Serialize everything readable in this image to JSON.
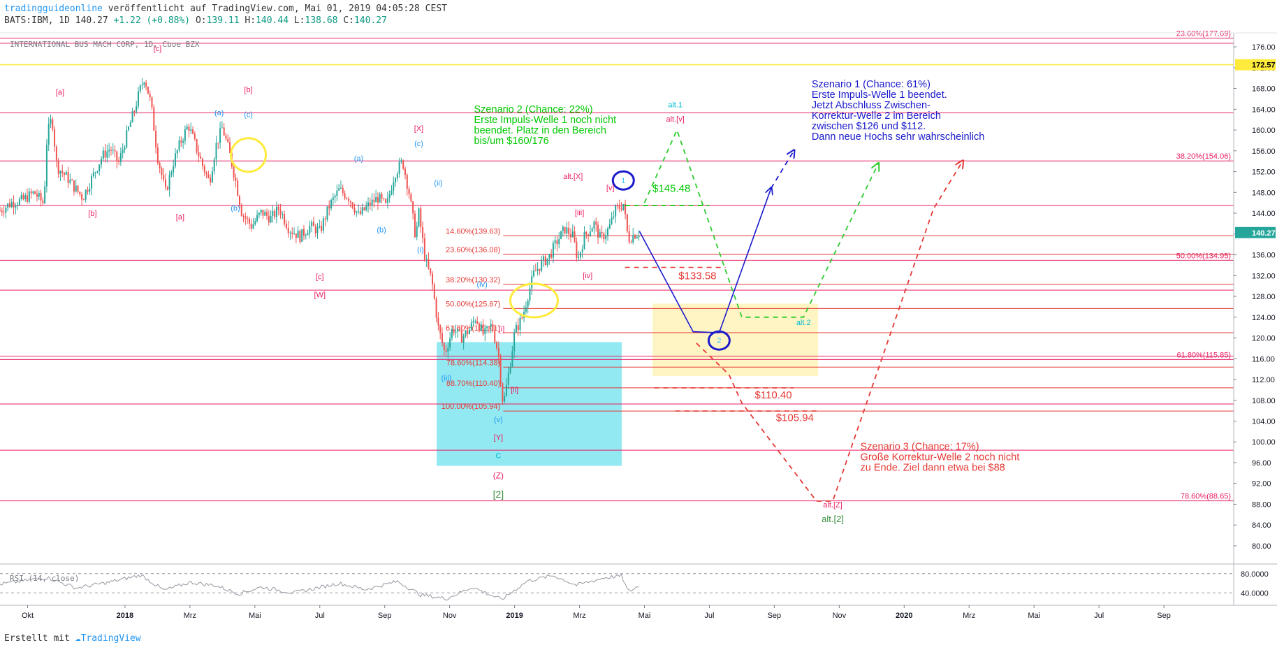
{
  "header": {
    "publisher": "tradingguideonline",
    "published_text": "veröffentlicht auf TradingView.com, Mai 01, 2019 04:05:28 CEST",
    "symbol_line": "BATS:IBM, 1D 140.27",
    "change": "+1.22 (+0.88%)",
    "o_label": "O:",
    "o": "139.11",
    "h_label": "H:",
    "h": "140.44",
    "l_label": "L:",
    "l": "138.68",
    "c_label": "C:",
    "c": "140.27"
  },
  "footer": {
    "created_with": "Erstellt mit",
    "tradingview": "TradingView"
  },
  "chart_data": {
    "type": "candlestick",
    "instrument_label": "INTERNATIONAL BUS MACH CORP, 1D, Cboe BZX",
    "price_axis": {
      "ticks": [
        176,
        172,
        168,
        164,
        160,
        156,
        152,
        148,
        144,
        140,
        136,
        132,
        128,
        124,
        120,
        116,
        112,
        108,
        104,
        100,
        96,
        92,
        88,
        84,
        80
      ],
      "tick_labels": [
        "176.00",
        "172.00",
        "168.00",
        "164.00",
        "160.00",
        "156.00",
        "152.00",
        "148.00",
        "144.00",
        "140.00",
        "136.00",
        "132.00",
        "128.00",
        "124.00",
        "120.00",
        "116.00",
        "112.00",
        "108.00",
        "104.00",
        "100.00",
        "96.00",
        "92.00",
        "88.00",
        "84.00",
        "80.00"
      ],
      "range": [
        76.5,
        178.7
      ],
      "highlight_labels": [
        {
          "text": "172.57",
          "value": 172.57,
          "bg": "#ffeb3b",
          "color": "#000000"
        },
        {
          "text": "140.27",
          "value": 140.27,
          "bg": "#26a69a",
          "color": "#ffffff"
        }
      ]
    },
    "time_axis": {
      "labels": [
        {
          "t": 0,
          "text": "Okt",
          "bold": false
        },
        {
          "t": 3,
          "text": "2018",
          "bold": true
        },
        {
          "t": 5,
          "text": "Mrz",
          "bold": false
        },
        {
          "t": 7,
          "text": "Mai",
          "bold": false
        },
        {
          "t": 9,
          "text": "Jul",
          "bold": false
        },
        {
          "t": 11,
          "text": "Sep",
          "bold": false
        },
        {
          "t": 13,
          "text": "Nov",
          "bold": false
        },
        {
          "t": 15,
          "text": "2019",
          "bold": true
        },
        {
          "t": 17,
          "text": "Mrz",
          "bold": false
        },
        {
          "t": 19,
          "text": "Mai",
          "bold": false
        },
        {
          "t": 21,
          "text": "Jul",
          "bold": false
        },
        {
          "t": 23,
          "text": "Sep",
          "bold": false
        },
        {
          "t": 25,
          "text": "Nov",
          "bold": false
        },
        {
          "t": 27,
          "text": "2020",
          "bold": true
        },
        {
          "t": 29,
          "text": "Mrz",
          "bold": false
        },
        {
          "t": 31,
          "text": "Mai",
          "bold": false
        },
        {
          "t": 33,
          "text": "Jul",
          "bold": false
        },
        {
          "t": 35,
          "text": "Sep",
          "bold": false
        }
      ],
      "range": [
        -0.85,
        37.15
      ],
      "note": "t counts months from Okt 2017"
    },
    "price_path": [
      [
        -0.85,
        144.5
      ],
      [
        -0.5,
        146
      ],
      [
        -0.15,
        146.5
      ],
      [
        0.2,
        148
      ],
      [
        0.5,
        145.8
      ],
      [
        0.6,
        159
      ],
      [
        0.75,
        162.5
      ],
      [
        0.9,
        153
      ],
      [
        1.2,
        151
      ],
      [
        1.5,
        148.5
      ],
      [
        1.7,
        147
      ],
      [
        2.0,
        151
      ],
      [
        2.3,
        155
      ],
      [
        2.55,
        156.5
      ],
      [
        2.8,
        153.5
      ],
      [
        3.1,
        160
      ],
      [
        3.3,
        164
      ],
      [
        3.45,
        167.5
      ],
      [
        3.6,
        170.2
      ],
      [
        3.8,
        165
      ],
      [
        4.0,
        155
      ],
      [
        4.25,
        148
      ],
      [
        4.5,
        154
      ],
      [
        4.7,
        157.5
      ],
      [
        4.95,
        161
      ],
      [
        5.2,
        156.5
      ],
      [
        5.4,
        153
      ],
      [
        5.6,
        150
      ],
      [
        5.8,
        157
      ],
      [
        6.0,
        160.5
      ],
      [
        6.2,
        156
      ],
      [
        6.4,
        150.5
      ],
      [
        6.6,
        144
      ],
      [
        6.9,
        141.5
      ],
      [
        7.2,
        144.2
      ],
      [
        7.5,
        143
      ],
      [
        7.75,
        145
      ],
      [
        8.05,
        141
      ],
      [
        8.4,
        139.5
      ],
      [
        8.7,
        141.5
      ],
      [
        9.0,
        140.5
      ],
      [
        9.3,
        145.5
      ],
      [
        9.6,
        148.5
      ],
      [
        9.9,
        147
      ],
      [
        10.2,
        143.5
      ],
      [
        10.5,
        145.5
      ],
      [
        10.8,
        147
      ],
      [
        11.05,
        145.2
      ],
      [
        11.3,
        151.5
      ],
      [
        11.55,
        154
      ],
      [
        11.75,
        148
      ],
      [
        11.95,
        139.5
      ],
      [
        12.05,
        144
      ],
      [
        12.25,
        135
      ],
      [
        12.45,
        131
      ],
      [
        12.65,
        122
      ],
      [
        12.85,
        117
      ],
      [
        13.1,
        122
      ],
      [
        13.35,
        120
      ],
      [
        13.6,
        121.5
      ],
      [
        13.8,
        124
      ],
      [
        14.05,
        120.5
      ],
      [
        14.3,
        122.5
      ],
      [
        14.5,
        117
      ],
      [
        14.65,
        107
      ],
      [
        14.8,
        112.5
      ],
      [
        15.0,
        121
      ],
      [
        15.25,
        124.2
      ],
      [
        15.4,
        128
      ],
      [
        15.6,
        132.5
      ],
      [
        15.85,
        134.5
      ],
      [
        16.05,
        135.5
      ],
      [
        16.3,
        138.5
      ],
      [
        16.55,
        141
      ],
      [
        16.8,
        139.5
      ],
      [
        16.95,
        135
      ],
      [
        17.15,
        139.5
      ],
      [
        17.45,
        142
      ],
      [
        17.65,
        139
      ],
      [
        17.9,
        141
      ],
      [
        18.1,
        144.5
      ],
      [
        18.35,
        145.8
      ],
      [
        18.5,
        139
      ],
      [
        18.7,
        140
      ],
      [
        18.85,
        140.27
      ]
    ],
    "rsi": {
      "label": "RSI (14, close)",
      "levels": [
        80.0,
        40.0
      ],
      "level_labels": [
        "80.0000",
        "40.0000"
      ],
      "path": [
        [
          -0.85,
          58
        ],
        [
          0.6,
          72
        ],
        [
          1.5,
          50
        ],
        [
          2.5,
          62
        ],
        [
          3.5,
          77
        ],
        [
          4.2,
          45
        ],
        [
          5.0,
          62
        ],
        [
          5.8,
          55
        ],
        [
          6.5,
          38
        ],
        [
          7.2,
          52
        ],
        [
          8.2,
          40
        ],
        [
          9.6,
          60
        ],
        [
          10.4,
          47
        ],
        [
          11.4,
          64
        ],
        [
          12.1,
          36
        ],
        [
          12.9,
          28
        ],
        [
          13.7,
          52
        ],
        [
          14.6,
          26
        ],
        [
          15.4,
          65
        ],
        [
          16.2,
          76
        ],
        [
          16.9,
          56
        ],
        [
          17.8,
          72
        ],
        [
          18.3,
          75
        ],
        [
          18.5,
          42
        ],
        [
          18.85,
          55
        ]
      ]
    },
    "horizontal_lines": [
      {
        "price": 177.69,
        "color": "#e91e63",
        "label": "23.60%(177.69)"
      },
      {
        "price": 176.7,
        "color": "#e91e63",
        "label": ""
      },
      {
        "price": 172.57,
        "color": "#ffeb3b",
        "label": ""
      },
      {
        "price": 163.3,
        "color": "#e91e63",
        "label": ""
      },
      {
        "price": 154.06,
        "color": "#e91e63",
        "label": "38.20%(154.06)"
      },
      {
        "price": 145.5,
        "color": "#e91e63",
        "label": ""
      },
      {
        "price": 134.95,
        "color": "#e91e63",
        "label": "50.00%(134.95)"
      },
      {
        "price": 129.2,
        "color": "#e91e63",
        "label": ""
      },
      {
        "price": 116.5,
        "color": "#e91e63",
        "label": ""
      },
      {
        "price": 115.85,
        "color": "#e91e63",
        "label": "61.80%(115.85)"
      },
      {
        "price": 107.3,
        "color": "#e91e63",
        "label": ""
      },
      {
        "price": 98.4,
        "color": "#e91e63",
        "label": ""
      },
      {
        "price": 88.65,
        "color": "#e91e63",
        "label": "78.60%(88.65)"
      }
    ],
    "fib_retracement": {
      "t_start": 14.65,
      "t_end": 37.15,
      "levels": [
        {
          "price": 139.63,
          "label": "14.60%(139.63)"
        },
        {
          "price": 136.08,
          "label": "23.60%(136.08)"
        },
        {
          "price": 130.32,
          "label": "38.20%(130.32)"
        },
        {
          "price": 125.67,
          "label": "50.00%(125.67)"
        },
        {
          "price": 121.01,
          "label": "61.80%(121.01)"
        },
        {
          "price": 114.38,
          "label": "78.60%(114.38)"
        },
        {
          "price": 110.4,
          "label": "88.70%(110.40)"
        },
        {
          "price": 105.94,
          "label": "100.00%(105.94)"
        }
      ]
    },
    "zones": [
      {
        "t1": 12.6,
        "t2": 18.3,
        "p1": 119.2,
        "p2": 95.4,
        "color": "#7fe5f0"
      },
      {
        "t1": 19.25,
        "t2": 24.35,
        "p1": 126.6,
        "p2": 112.7,
        "color": "#fff2b8"
      }
    ],
    "circles": [
      {
        "t": 6.8,
        "p": 155.2,
        "rx": 25,
        "ry": 24,
        "color": "#ffeb3b"
      },
      {
        "t": 15.6,
        "p": 127.2,
        "rx": 34,
        "ry": 24,
        "color": "#ffeb3b"
      }
    ],
    "wave_markers": [
      {
        "t": 18.35,
        "p": 150.3,
        "text": "1",
        "color": "#1a1acc",
        "fill": "#40c4ff"
      },
      {
        "t": 21.3,
        "p": 119.5,
        "text": "2",
        "color": "#1a1acc",
        "fill": "#40c4ff"
      }
    ],
    "labels": [
      {
        "t": 4.0,
        "p": 175.2,
        "text": "[c]",
        "color": "#e91e63",
        "size": 11
      },
      {
        "t": 1.0,
        "p": 166.8,
        "text": "[a]",
        "color": "#e91e63",
        "size": 11
      },
      {
        "t": 2.0,
        "p": 143.5,
        "text": "[b]",
        "color": "#e91e63",
        "size": 11
      },
      {
        "t": 4.7,
        "p": 142.8,
        "text": "[a]",
        "color": "#e91e63",
        "size": 11
      },
      {
        "t": 5.9,
        "p": 162.8,
        "text": "(a)",
        "color": "#2196f3",
        "size": 11
      },
      {
        "t": 6.8,
        "p": 167.3,
        "text": "[b]",
        "color": "#e91e63",
        "size": 11
      },
      {
        "t": 6.8,
        "p": 162.5,
        "text": "(c)",
        "color": "#2196f3",
        "size": 11
      },
      {
        "t": 6.4,
        "p": 144.5,
        "text": "(b)",
        "color": "#2196f3",
        "size": 11
      },
      {
        "t": 9.0,
        "p": 131.3,
        "text": "[c]",
        "color": "#e91e63",
        "size": 11
      },
      {
        "t": 9.0,
        "p": 127.8,
        "text": "[W]",
        "color": "#e91e63",
        "size": 11
      },
      {
        "t": 10.2,
        "p": 154.0,
        "text": "(a)",
        "color": "#2196f3",
        "size": 11
      },
      {
        "t": 10.9,
        "p": 140.3,
        "text": "(b)",
        "color": "#2196f3",
        "size": 11
      },
      {
        "t": 12.05,
        "p": 159.8,
        "text": "[X]",
        "color": "#e91e63",
        "size": 11
      },
      {
        "t": 12.05,
        "p": 156.9,
        "text": "(c)",
        "color": "#2196f3",
        "size": 11
      },
      {
        "t": 12.65,
        "p": 149.3,
        "text": "(ii)",
        "color": "#2196f3",
        "size": 11
      },
      {
        "t": 12.1,
        "p": 136.5,
        "text": "(i)",
        "color": "#2196f3",
        "size": 11
      },
      {
        "t": 14.0,
        "p": 129.8,
        "text": "(iv)",
        "color": "#2196f3",
        "size": 11
      },
      {
        "t": 12.9,
        "p": 111.8,
        "text": "(iii)",
        "color": "#2196f3",
        "size": 11
      },
      {
        "t": 14.6,
        "p": 121.2,
        "text": "[i]",
        "color": "#e91e63",
        "size": 11
      },
      {
        "t": 15.0,
        "p": 109.5,
        "text": "[ii]",
        "color": "#e91e63",
        "size": 11
      },
      {
        "t": 14.5,
        "p": 103.8,
        "text": "(v)",
        "color": "#2196f3",
        "size": 11
      },
      {
        "t": 14.5,
        "p": 100.4,
        "text": "[Y]",
        "color": "#e91e63",
        "size": 11
      },
      {
        "t": 14.5,
        "p": 96.9,
        "text": "C",
        "color": "#00bcd4",
        "size": 11
      },
      {
        "t": 14.5,
        "p": 93.0,
        "text": "(Z)",
        "color": "#e91e63",
        "size": 12
      },
      {
        "t": 14.5,
        "p": 89.3,
        "text": "[2]",
        "color": "#388e3c",
        "size": 14
      },
      {
        "t": 17.0,
        "p": 143.6,
        "text": "[iii]",
        "color": "#e91e63",
        "size": 11
      },
      {
        "t": 17.25,
        "p": 131.5,
        "text": "[iv]",
        "color": "#e91e63",
        "size": 11
      },
      {
        "t": 16.8,
        "p": 150.6,
        "text": "alt.[X]",
        "color": "#e91e63",
        "size": 11
      },
      {
        "t": 17.95,
        "p": 148.4,
        "text": "[v]",
        "color": "#e91e63",
        "size": 11
      },
      {
        "t": 19.95,
        "p": 164.4,
        "text": "alt.1",
        "color": "#00bcd4",
        "size": 11
      },
      {
        "t": 19.95,
        "p": 161.6,
        "text": "alt.[v]",
        "color": "#e91e63",
        "size": 11
      },
      {
        "t": 23.9,
        "p": 122.5,
        "text": "alt.2",
        "color": "#00bcd4",
        "size": 11
      },
      {
        "t": 24.8,
        "p": 87.4,
        "text": "alt.[Z]",
        "color": "#e91e63",
        "size": 11
      },
      {
        "t": 24.8,
        "p": 84.6,
        "text": "alt.[2]",
        "color": "#388e3c",
        "size": 13
      }
    ],
    "price_targets": [
      {
        "text": "$145.48",
        "t": 19.25,
        "p": 148.1,
        "color": "#00c800",
        "line_t1": 18.4,
        "line_t2": 21.0,
        "line_p": 145.48,
        "line_color": "#00c800"
      },
      {
        "text": "$133.58",
        "t": 20.05,
        "p": 131.3,
        "color": "#e53935",
        "line_t1": 18.4,
        "line_t2": 21.5,
        "line_p": 133.58,
        "line_color": "#e53935"
      },
      {
        "text": "$110.40",
        "t": 22.4,
        "p": 108.4,
        "color": "#e53935",
        "line_t1": 19.3,
        "line_t2": 23.6,
        "line_p": 110.4,
        "line_color": "#e53935"
      },
      {
        "text": "$105.94",
        "t": 23.05,
        "p": 104.0,
        "color": "#e53935",
        "line_t1": 19.95,
        "line_t2": 24.3,
        "line_p": 105.94,
        "line_color": "#e53935"
      }
    ],
    "scenario_paths": [
      {
        "name": "Szenario 1",
        "color": "#1a1acc",
        "dashed": false,
        "points": [
          [
            18.85,
            140.5
          ],
          [
            20.5,
            121.2
          ],
          [
            21.3,
            121.0
          ],
          [
            22.9,
            148.8
          ]
        ]
      },
      {
        "name": "Szenario 1 Fortsetzung",
        "color": "#1a1acc",
        "dashed": true,
        "points": [
          [
            22.9,
            148.8
          ],
          [
            23.6,
            156.0
          ]
        ]
      },
      {
        "name": "Szenario 2",
        "color": "#2ecc2e",
        "dashed": true,
        "points": [
          [
            19.0,
            146.0
          ],
          [
            20.0,
            160.0
          ],
          [
            22.0,
            124.0
          ],
          [
            23.9,
            124.0
          ],
          [
            26.2,
            153.5
          ]
        ]
      },
      {
        "name": "Szenario 3",
        "color": "#e53935",
        "dashed": true,
        "points": [
          [
            20.6,
            119.0
          ],
          [
            21.6,
            113.0
          ],
          [
            22.0,
            107.5
          ],
          [
            24.3,
            88.6
          ],
          [
            24.8,
            88.6
          ],
          [
            27.9,
            144.8
          ],
          [
            28.8,
            154.0
          ]
        ]
      }
    ],
    "scenario_texts": [
      {
        "lines": [
          "Szenario 1 (Chance: 61%)",
          "Erste Impuls-Welle 1 beendet.",
          "Jetzt Abschluss Zwischen-",
          "Korrektur-Welle 2 im Bereich",
          "zwischen $126 und $112.",
          "Dann neue Hochs sehr wahrscheinlich"
        ],
        "t": 24.15,
        "p": 168.2,
        "color": "#1a1acc"
      },
      {
        "lines": [
          "Szenario 2 (Chance: 22%)",
          "Erste Impuls-Welle 1 noch nicht",
          "beendet. Platz in den Bereich",
          "bis/um $160/176"
        ],
        "t": 13.75,
        "p": 163.4,
        "color": "#00c800"
      },
      {
        "lines": [
          "Szenario 3 (Chance: 17%)",
          "Große Korrektur-Welle 2 noch nicht",
          "zu Ende. Ziel dann etwa bei $88"
        ],
        "t": 25.65,
        "p": 98.5,
        "color": "#e53935"
      }
    ]
  }
}
